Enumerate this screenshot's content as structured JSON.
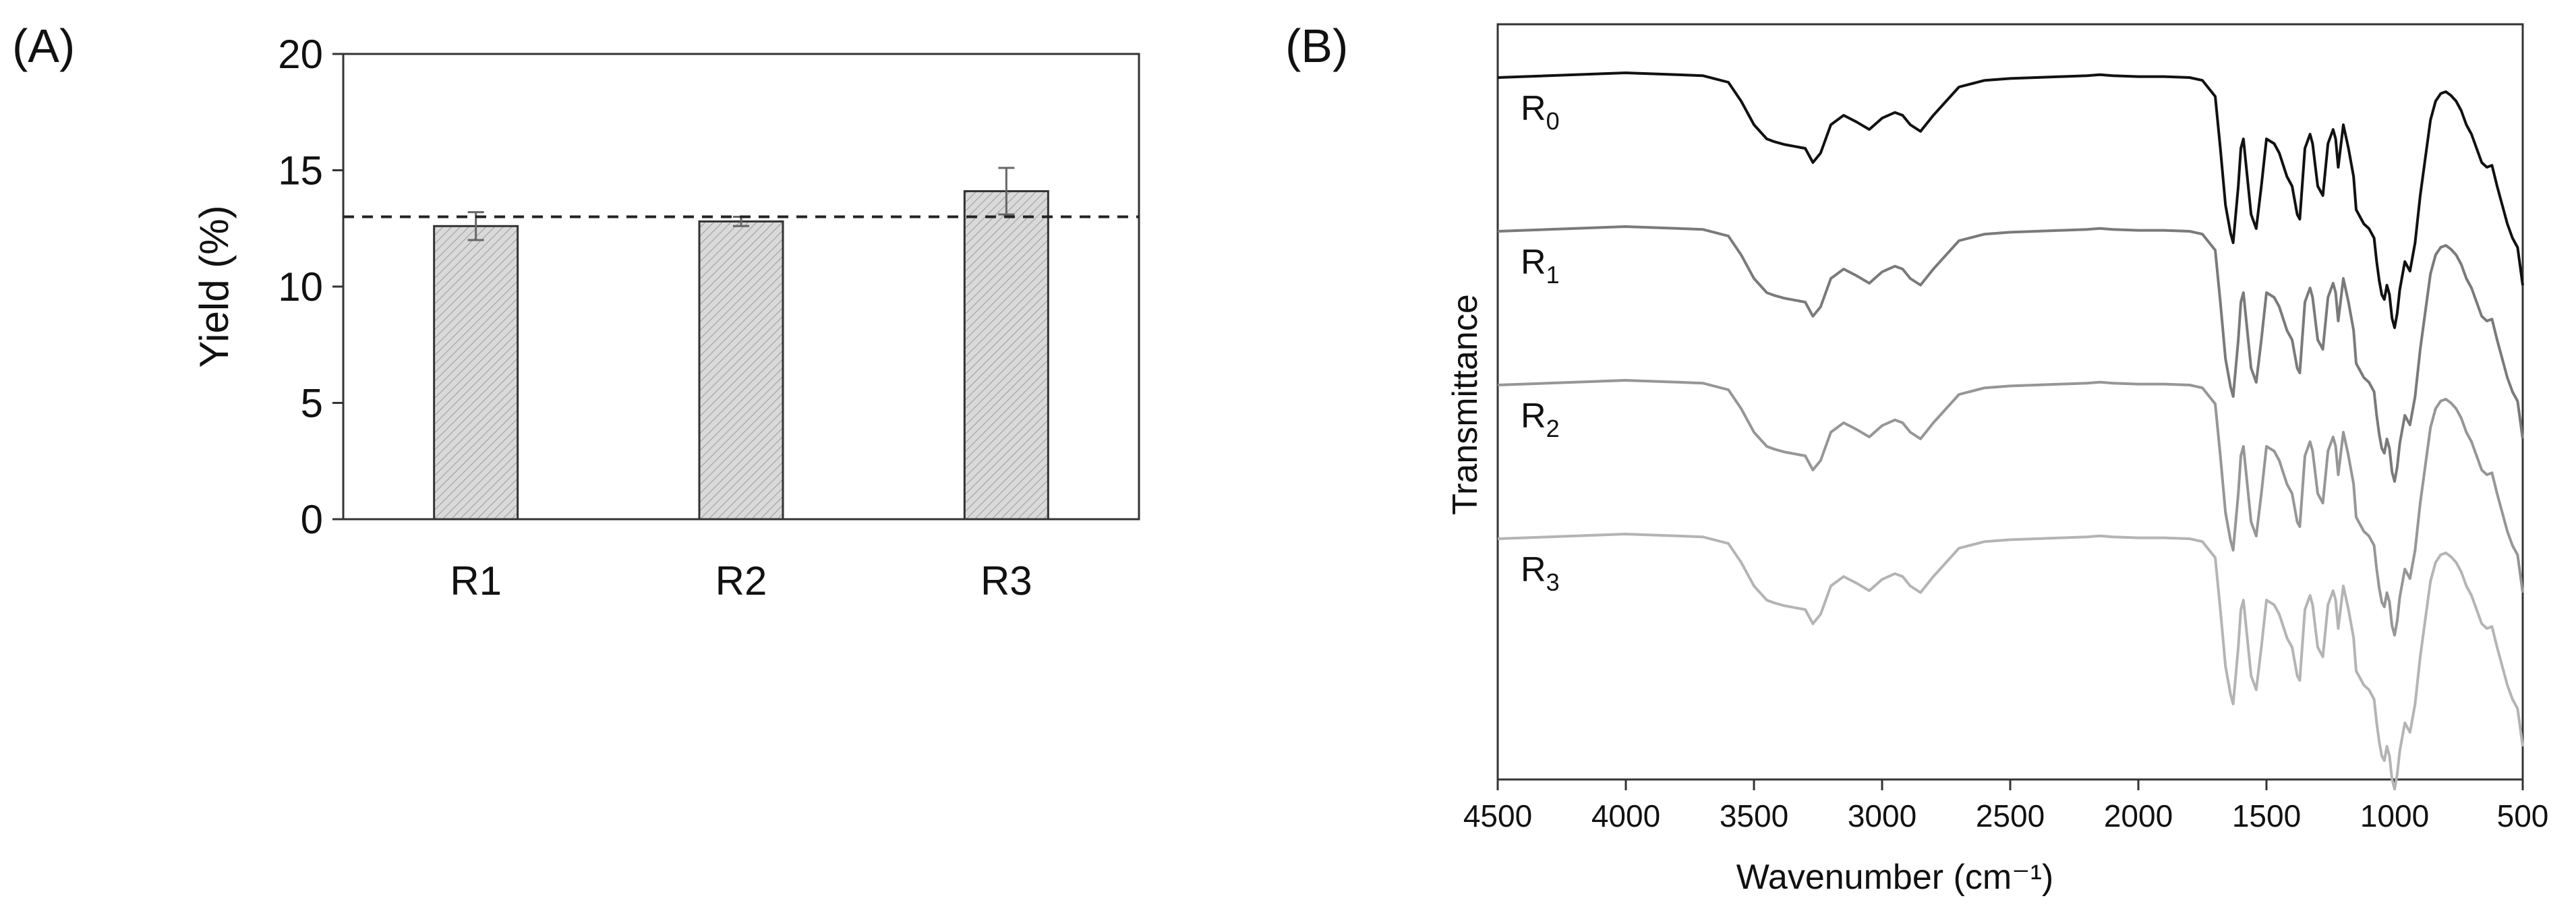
{
  "chart_data": [
    {
      "panel_label": "(A)",
      "type": "bar",
      "categories": [
        "R1",
        "R2",
        "R3"
      ],
      "values": [
        12.6,
        12.8,
        14.1
      ],
      "error": [
        0.6,
        0.2,
        1.0
      ],
      "reference_line": 13.0,
      "title": "",
      "xlabel": "",
      "ylabel": "Yield (%)",
      "ylim": [
        0,
        20
      ],
      "yticks": [
        "0",
        "5",
        "10",
        "15",
        "20"
      ],
      "grid": false,
      "legend": "none",
      "colors": {
        "bar_fill": "#d9d9d9",
        "bar_hatch": "#9a9a9a",
        "edge": "#333333",
        "reference": "#222222"
      }
    },
    {
      "panel_label": "(B)",
      "type": "line",
      "xlabel": "Wavenumber (cm⁻¹)",
      "ylabel": "Transmittance",
      "xlim": [
        4500,
        500
      ],
      "reversed_x": true,
      "xticks": [
        "4500",
        "4000",
        "3500",
        "3000",
        "2500",
        "2000",
        "1500",
        "1000",
        "500"
      ],
      "y_axis_ticks": false,
      "grid": false,
      "series": [
        {
          "name": "R",
          "sub": "0",
          "color": "#111111",
          "offset": 0.0
        },
        {
          "name": "R",
          "sub": "1",
          "color": "#7a7a7a",
          "offset": 1.0
        },
        {
          "name": "R",
          "sub": "2",
          "color": "#969696",
          "offset": 2.0
        },
        {
          "name": "R",
          "sub": "3",
          "color": "#b4b4b4",
          "offset": 3.0
        }
      ],
      "x": [
        4500,
        4000,
        3800,
        3700,
        3600,
        3550,
        3500,
        3450,
        3420,
        3380,
        3340,
        3300,
        3270,
        3240,
        3200,
        3150,
        3100,
        3050,
        3000,
        2950,
        2920,
        2890,
        2850,
        2800,
        2700,
        2600,
        2500,
        2400,
        2300,
        2200,
        2150,
        2100,
        2000,
        1900,
        1800,
        1750,
        1700,
        1680,
        1660,
        1640,
        1630,
        1610,
        1600,
        1590,
        1560,
        1540,
        1520,
        1500,
        1470,
        1450,
        1420,
        1400,
        1380,
        1370,
        1350,
        1330,
        1320,
        1300,
        1280,
        1260,
        1240,
        1230,
        1220,
        1200,
        1180,
        1160,
        1150,
        1140,
        1120,
        1100,
        1080,
        1070,
        1060,
        1050,
        1040,
        1030,
        1020,
        1010,
        1000,
        990,
        980,
        960,
        940,
        920,
        900,
        880,
        860,
        840,
        820,
        800,
        780,
        760,
        740,
        720,
        700,
        680,
        660,
        640,
        620,
        600,
        580,
        560,
        540,
        520,
        500
      ],
      "y": [
        0.05,
        0.0,
        0.02,
        0.03,
        0.1,
        0.3,
        0.55,
        0.7,
        0.73,
        0.76,
        0.78,
        0.8,
        0.95,
        0.85,
        0.55,
        0.45,
        0.52,
        0.6,
        0.48,
        0.42,
        0.45,
        0.55,
        0.62,
        0.45,
        0.15,
        0.08,
        0.06,
        0.05,
        0.04,
        0.03,
        0.02,
        0.03,
        0.04,
        0.04,
        0.05,
        0.08,
        0.25,
        0.8,
        1.4,
        1.7,
        1.8,
        1.2,
        0.8,
        0.7,
        1.5,
        1.65,
        1.2,
        0.7,
        0.75,
        0.85,
        1.1,
        1.2,
        1.5,
        1.55,
        0.8,
        0.65,
        0.75,
        1.2,
        1.3,
        0.75,
        0.6,
        0.7,
        1.0,
        0.55,
        0.8,
        1.1,
        1.45,
        1.5,
        1.6,
        1.65,
        1.75,
        2.0,
        2.2,
        2.35,
        2.4,
        2.25,
        2.35,
        2.6,
        2.7,
        2.55,
        2.3,
        2.0,
        2.1,
        1.8,
        1.3,
        0.9,
        0.5,
        0.3,
        0.22,
        0.2,
        0.24,
        0.3,
        0.4,
        0.55,
        0.65,
        0.8,
        0.95,
        1.0,
        0.98,
        1.2,
        1.4,
        1.6,
        1.75,
        1.85,
        2.25
      ]
    }
  ]
}
